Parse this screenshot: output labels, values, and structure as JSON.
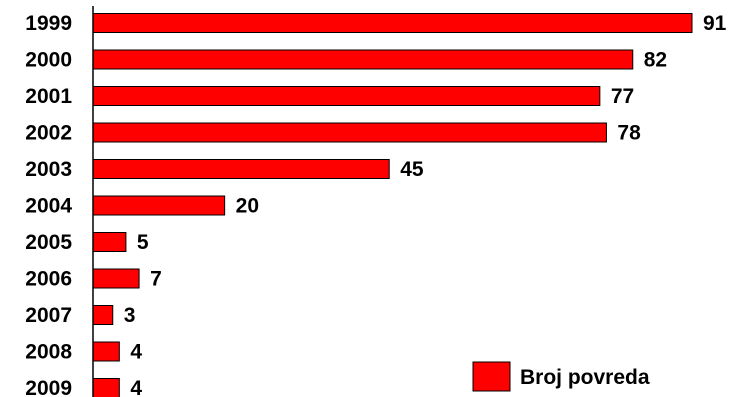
{
  "chart_data": {
    "type": "bar",
    "orientation": "horizontal",
    "categories": [
      "1999",
      "2000",
      "2001",
      "2002",
      "2003",
      "2004",
      "2005",
      "2006",
      "2007",
      "2008",
      "2009"
    ],
    "series": [
      {
        "name": "Broj povreda",
        "values": [
          91,
          82,
          77,
          78,
          45,
          20,
          5,
          7,
          3,
          4,
          4
        ],
        "color": "#ff0000"
      }
    ],
    "data_labels": [
      "91",
      "82",
      "77",
      "78",
      "45",
      "20",
      "5",
      "7",
      "3",
      "4",
      "4"
    ],
    "xlim": [
      0,
      91
    ],
    "grid": false,
    "legend_position": "bottom-right"
  }
}
